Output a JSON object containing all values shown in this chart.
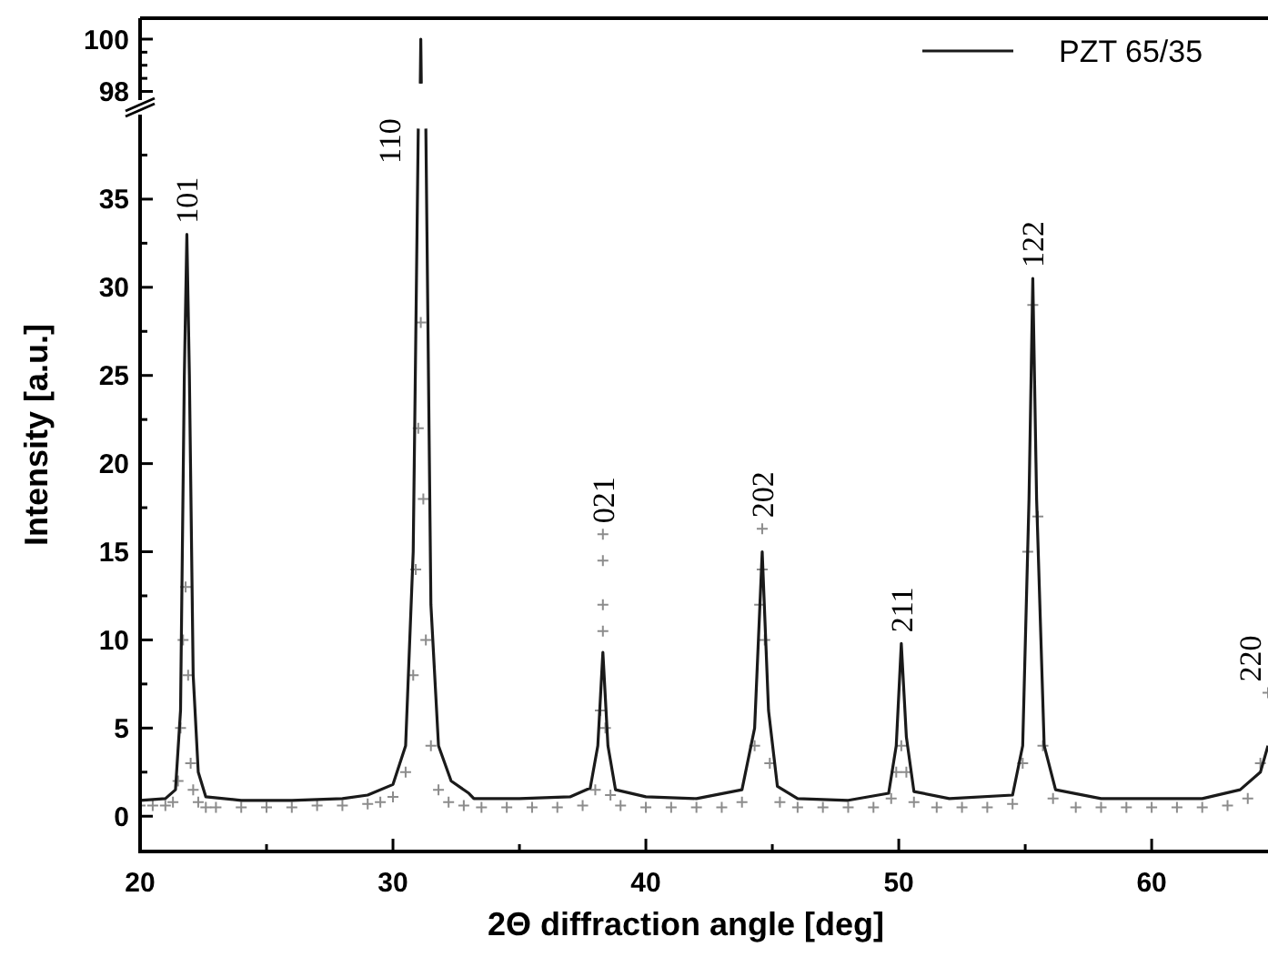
{
  "chart_data": [
    {
      "type": "line",
      "xlim": [
        20,
        64.6
      ],
      "ylim": [
        97.6,
        100.8
      ],
      "yticks": [
        98,
        {
          "value": 98.5,
          "label": null
        },
        {
          "value": 99,
          "label": null
        },
        {
          "value": 99.5,
          "label": null
        },
        100
      ],
      "tick_labels": "y",
      "legend": "top right",
      "grid": false,
      "series": [
        {
          "name": "PZT 65/35",
          "type": "line",
          "color": "#1a1a1a",
          "x": [
            31.08,
            31.1,
            31.12
          ],
          "values": [
            98.3,
            100,
            98.3
          ]
        }
      ]
    },
    {
      "type": "line",
      "xlim": [
        20,
        64.6
      ],
      "ylim": [
        -2,
        40
      ],
      "xticks": [
        20,
        {
          "value": 25,
          "label": null
        },
        30,
        {
          "value": 35,
          "label": null
        },
        40,
        {
          "value": 45,
          "label": null
        },
        50,
        {
          "value": 55,
          "label": null
        },
        60
      ],
      "yticks": [
        0,
        {
          "value": 2.5,
          "label": null
        },
        5,
        {
          "value": 7.5,
          "label": null
        },
        10,
        {
          "value": 12.5,
          "label": null
        },
        15,
        {
          "value": 17.5,
          "label": null
        },
        20,
        {
          "value": 22.5,
          "label": null
        },
        25,
        {
          "value": 27.5,
          "label": null
        },
        30,
        {
          "value": 32.5,
          "label": null
        },
        35,
        {
          "value": 37.5,
          "label": null
        }
      ],
      "xlabel": "2Θ diffraction angle [deg]",
      "ylabel": "Intensity [a.u.]",
      "legend": false,
      "grid": false,
      "annotations": [
        {
          "text": "101",
          "x": 21.85,
          "y": 33
        },
        {
          "text": "110",
          "x": 31,
          "y": 39
        },
        {
          "text": "021",
          "x": 38.3,
          "y": 16
        },
        {
          "text": "202",
          "x": 44.6,
          "y": 16.3
        },
        {
          "text": "211",
          "x": 50.1,
          "y": 9.8
        },
        {
          "text": "122",
          "x": 55.3,
          "y": 30.5
        },
        {
          "text": "220",
          "x": 64.6,
          "y": 7
        }
      ],
      "series": [
        {
          "type": "scatter",
          "marker": "cross",
          "color": "#8c8c8c",
          "x": [
            20,
            20.5,
            21,
            21.3,
            21.5,
            21.6,
            21.7,
            21.8,
            21.9,
            22,
            22.1,
            22.3,
            22.6,
            23,
            24,
            25,
            26,
            27,
            28,
            29,
            29.5,
            30,
            30.5,
            30.8,
            30.9,
            31,
            31.1,
            31.2,
            31.3,
            31.5,
            31.8,
            32.2,
            32.8,
            33.5,
            34.5,
            35.5,
            36.5,
            37.5,
            38,
            38.2,
            38.3,
            38.3,
            38.3,
            38.3,
            38.4,
            38.6,
            39,
            40,
            41,
            42,
            43,
            43.8,
            44.3,
            44.5,
            44.6,
            44.6,
            44.7,
            44.9,
            45.3,
            46,
            47,
            48,
            49,
            49.7,
            49.9,
            50.1,
            50.3,
            50.6,
            51.5,
            52.5,
            53.5,
            54.5,
            54.9,
            55.1,
            55.3,
            55.5,
            55.7,
            56.1,
            57,
            58,
            59,
            60,
            61,
            62,
            63,
            63.8,
            64.3,
            64.6
          ],
          "values": [
            0.6,
            0.6,
            0.6,
            0.8,
            2,
            5,
            10,
            13,
            8,
            3,
            1.5,
            0.8,
            0.5,
            0.5,
            0.5,
            0.5,
            0.5,
            0.6,
            0.6,
            0.7,
            0.8,
            1.1,
            2.5,
            8,
            14,
            22,
            28,
            18,
            10,
            4,
            1.5,
            0.8,
            0.6,
            0.5,
            0.5,
            0.5,
            0.5,
            0.6,
            1.5,
            6,
            16,
            14.5,
            12,
            10.5,
            5,
            1.2,
            0.6,
            0.5,
            0.5,
            0.5,
            0.5,
            0.8,
            4,
            12,
            16.3,
            14,
            10,
            3,
            0.8,
            0.5,
            0.5,
            0.5,
            0.5,
            1,
            2.5,
            4,
            2.5,
            0.8,
            0.5,
            0.5,
            0.5,
            0.7,
            3,
            15,
            29,
            17,
            4,
            1,
            0.5,
            0.5,
            0.5,
            0.5,
            0.5,
            0.5,
            0.6,
            1,
            3,
            7
          ]
        },
        {
          "type": "line",
          "color": "#1a1a1a",
          "x": [
            20,
            21,
            21.4,
            21.6,
            21.75,
            21.85,
            21.95,
            22.1,
            22.3,
            22.6,
            24,
            26,
            28,
            29,
            30,
            30.5,
            30.8,
            31,
            31.1,
            31.3,
            31.5,
            31.8,
            32.3,
            33,
            33.2,
            35,
            37,
            37.8,
            38.1,
            38.3,
            38.5,
            38.8,
            40,
            42,
            43.8,
            44.3,
            44.6,
            44.85,
            45.2,
            46,
            48,
            49.6,
            49.9,
            50.1,
            50.3,
            50.6,
            52,
            54.5,
            54.9,
            55.15,
            55.3,
            55.45,
            55.75,
            56.2,
            58,
            62,
            63.5,
            64.3,
            64.6
          ],
          "values": [
            0.9,
            1,
            1.5,
            6,
            25,
            33,
            25,
            8,
            2.5,
            1.1,
            0.9,
            0.9,
            1,
            1.2,
            1.8,
            4,
            15,
            39,
            null,
            39,
            12,
            4,
            2,
            1.3,
            1,
            1,
            1.1,
            1.6,
            4,
            9.3,
            4,
            1.5,
            1.1,
            1,
            1.5,
            5,
            15,
            6,
            1.7,
            1,
            0.9,
            1.3,
            4,
            9.8,
            4.5,
            1.4,
            1,
            1.2,
            4,
            18,
            30.5,
            18,
            4,
            1.5,
            1,
            1,
            1.5,
            2.5,
            4
          ]
        }
      ]
    }
  ]
}
